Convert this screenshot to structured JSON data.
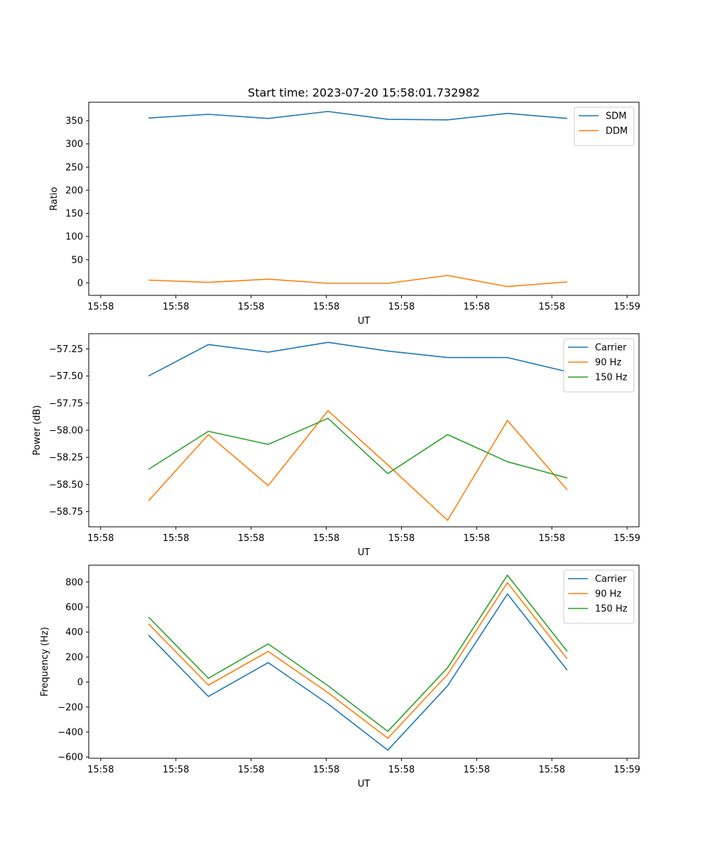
{
  "chart_data": [
    {
      "type": "line",
      "title": "Start time: 2023-07-20 15:58:01.732982",
      "xlabel": "UT",
      "ylabel": "Ratio",
      "x_tick_labels": [
        "15:58",
        "15:58",
        "15:58",
        "15:58",
        "15:58",
        "15:58",
        "15:58",
        "15:59"
      ],
      "x": [
        1,
        2,
        3,
        4,
        5,
        6,
        7,
        8
      ],
      "xlim": [
        0,
        9.2
      ],
      "yticks": [
        0,
        50,
        100,
        150,
        200,
        250,
        300,
        350
      ],
      "ylim": [
        -27,
        390
      ],
      "legend": "top-right",
      "series": [
        {
          "name": "SDM",
          "color": "#1f77b4",
          "values": [
            356,
            364,
            355,
            370,
            353,
            352,
            366,
            355
          ]
        },
        {
          "name": "DDM",
          "color": "#ff7f0e",
          "values": [
            6,
            1,
            8,
            -1,
            -1,
            16,
            -8,
            2
          ]
        }
      ]
    },
    {
      "type": "line",
      "title": "",
      "xlabel": "UT",
      "ylabel": "Power (dB)",
      "x_tick_labels": [
        "15:58",
        "15:58",
        "15:58",
        "15:58",
        "15:58",
        "15:58",
        "15:58",
        "15:59"
      ],
      "x": [
        1,
        2,
        3,
        4,
        5,
        6,
        7,
        8
      ],
      "xlim": [
        0,
        9.2
      ],
      "yticks": [
        -58.75,
        -58.5,
        -58.25,
        -58.0,
        -57.75,
        -57.5,
        -57.25
      ],
      "ytick_labels": [
        "−58.75",
        "−58.50",
        "−58.25",
        "−58.00",
        "−57.75",
        "−57.50",
        "−57.25"
      ],
      "ylim": [
        -58.89,
        -57.11
      ],
      "legend": "top-right",
      "series": [
        {
          "name": "Carrier",
          "color": "#1f77b4",
          "values": [
            -57.5,
            -57.21,
            -57.28,
            -57.19,
            -57.27,
            -57.33,
            -57.33,
            -57.46
          ]
        },
        {
          "name": "90 Hz",
          "color": "#ff7f0e",
          "values": [
            -58.65,
            -58.04,
            -58.51,
            -57.82,
            -58.32,
            -58.83,
            -57.91,
            -58.55
          ]
        },
        {
          "name": "150 Hz",
          "color": "#2ca02c",
          "values": [
            -58.36,
            -58.01,
            -58.13,
            -57.89,
            -58.4,
            -58.04,
            -58.29,
            -58.44
          ]
        }
      ]
    },
    {
      "type": "line",
      "title": "",
      "xlabel": "UT",
      "ylabel": "Frequency (Hz)",
      "x_tick_labels": [
        "15:58",
        "15:58",
        "15:58",
        "15:58",
        "15:58",
        "15:58",
        "15:58",
        "15:59"
      ],
      "x": [
        1,
        2,
        3,
        4,
        5,
        6,
        7,
        8
      ],
      "xlim": [
        0,
        9.2
      ],
      "yticks": [
        -600,
        -400,
        -200,
        0,
        200,
        400,
        600,
        800
      ],
      "ytick_labels": [
        "−600",
        "−400",
        "−200",
        "0",
        "200",
        "400",
        "600",
        "800"
      ],
      "ylim": [
        -610,
        935
      ],
      "legend": "top-right",
      "series": [
        {
          "name": "Carrier",
          "color": "#1f77b4",
          "values": [
            375,
            -115,
            155,
            -175,
            -545,
            -30,
            705,
            95
          ]
        },
        {
          "name": "90 Hz",
          "color": "#ff7f0e",
          "values": [
            465,
            -25,
            245,
            -85,
            -450,
            60,
            795,
            185
          ]
        },
        {
          "name": "150 Hz",
          "color": "#2ca02c",
          "values": [
            520,
            30,
            305,
            -30,
            -395,
            115,
            855,
            245
          ]
        }
      ]
    }
  ]
}
